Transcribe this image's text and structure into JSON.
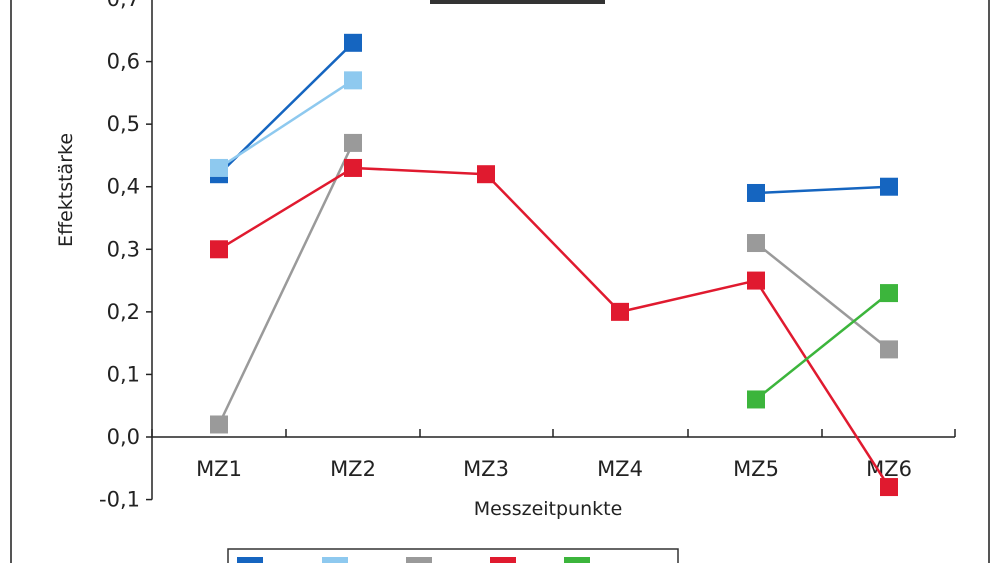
{
  "chart_data": {
    "type": "line",
    "title": "",
    "xlabel": "Messzeitpunkte",
    "ylabel": "Effektstärke",
    "categories": [
      "MZ1",
      "MZ2",
      "MZ3",
      "MZ4",
      "MZ5",
      "MZ6"
    ],
    "ylim": [
      -0.1,
      0.7
    ],
    "yticks": [
      -0.1,
      0.0,
      0.1,
      0.2,
      0.3,
      0.4,
      0.5,
      0.6,
      0.7
    ],
    "ytick_labels": [
      "-0,1",
      "0,0",
      "0,1",
      "0,2",
      "0,3",
      "0,4",
      "0,5",
      "0,6",
      "0,7"
    ],
    "grid": false,
    "legend": "bottom",
    "series": [
      {
        "color": "#1565c0",
        "values": [
          0.42,
          0.63,
          null,
          null,
          0.39,
          0.4
        ]
      },
      {
        "color": "#8ec9ef",
        "values": [
          0.43,
          0.57,
          null,
          null,
          null,
          null
        ]
      },
      {
        "color": "#9a9a9a",
        "values": [
          0.02,
          0.47,
          null,
          null,
          0.31,
          0.14
        ]
      },
      {
        "color": "#e01a2f",
        "values": [
          0.3,
          0.43,
          0.42,
          0.2,
          0.25,
          -0.08
        ]
      },
      {
        "color": "#3cb53c",
        "values": [
          null,
          null,
          null,
          null,
          0.06,
          0.23
        ]
      }
    ]
  }
}
